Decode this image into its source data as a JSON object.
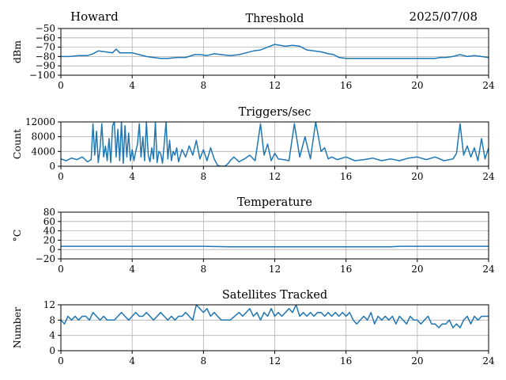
{
  "header": {
    "station": "Howard",
    "date": "2025/07/08"
  },
  "style": {
    "line_color": "#1f77b4",
    "grid_color": "#b0b0b0"
  },
  "chart_data": [
    {
      "type": "line",
      "title": "Threshold",
      "ylabel": "dBm",
      "xlabel": "",
      "xlim": [
        0,
        24
      ],
      "ylim": [
        -100,
        -50
      ],
      "xticks": [
        0,
        4,
        8,
        12,
        16,
        20,
        24
      ],
      "yticks": [
        -50,
        -60,
        -70,
        -80,
        -90,
        -100
      ],
      "ytick_labels": [
        "−50",
        "−60",
        "−70",
        "−80",
        "−90",
        "−100"
      ],
      "grid": true,
      "series": [
        {
          "x": [
            0,
            0.5,
            1,
            1.5,
            1.8,
            2.1,
            2.5,
            2.9,
            3.1,
            3.3,
            3.6,
            4,
            4.4,
            4.8,
            5.2,
            5.6,
            6,
            6.5,
            7,
            7.5,
            7.8,
            8.2,
            8.6,
            9,
            9.5,
            10,
            10.4,
            10.8,
            11.2,
            11.6,
            12,
            12.3,
            12.6,
            13,
            13.4,
            13.8,
            14.2,
            14.6,
            15,
            15.3,
            15.6,
            16,
            17,
            18,
            19,
            20,
            20.5,
            21,
            21.3,
            21.6,
            22,
            22.4,
            22.8,
            23.2,
            23.6,
            24
          ],
          "y": [
            -80,
            -80,
            -79,
            -79,
            -77,
            -74,
            -75,
            -76,
            -72,
            -76,
            -76,
            -76,
            -78,
            -80,
            -81,
            -82,
            -82,
            -81,
            -81,
            -78,
            -78,
            -79,
            -77,
            -78,
            -79,
            -78,
            -76,
            -74,
            -73,
            -70,
            -67,
            -68,
            -69,
            -68,
            -69,
            -73,
            -74,
            -75,
            -77,
            -78,
            -81,
            -82,
            -82,
            -82,
            -82,
            -82,
            -82,
            -82,
            -81,
            -81,
            -80,
            -78,
            -80,
            -79,
            -80,
            -81
          ]
        }
      ]
    },
    {
      "type": "line",
      "title": "Triggers/sec",
      "ylabel": "Count",
      "xlabel": "",
      "xlim": [
        0,
        24
      ],
      "ylim": [
        0,
        12000
      ],
      "xticks": [
        0,
        4,
        8,
        12,
        16,
        20,
        24
      ],
      "yticks": [
        0,
        4000,
        8000,
        12000
      ],
      "ytick_labels": [
        "0",
        "4000",
        "8000",
        "12000"
      ],
      "grid": true,
      "series": [
        {
          "x": [
            0,
            0.3,
            0.6,
            0.9,
            1.2,
            1.5,
            1.7,
            1.8,
            1.9,
            2,
            2.1,
            2.2,
            2.3,
            2.4,
            2.5,
            2.6,
            2.7,
            2.8,
            2.9,
            3.0,
            3.1,
            3.2,
            3.3,
            3.4,
            3.5,
            3.6,
            3.7,
            3.8,
            3.9,
            4.0,
            4.1,
            4.2,
            4.3,
            4.4,
            4.5,
            4.6,
            4.7,
            4.8,
            4.9,
            5.0,
            5.1,
            5.2,
            5.3,
            5.4,
            5.5,
            5.6,
            5.7,
            5.8,
            5.9,
            6.0,
            6.1,
            6.2,
            6.3,
            6.4,
            6.5,
            6.6,
            6.8,
            7.0,
            7.2,
            7.4,
            7.6,
            7.8,
            8.0,
            8.2,
            8.4,
            8.6,
            8.8,
            9.0,
            9.2,
            9.4,
            9.5,
            9.7,
            10.0,
            10.3,
            10.6,
            10.9,
            11.2,
            11.4,
            11.6,
            11.8,
            12.0,
            12.2,
            12.5,
            12.8,
            13.1,
            13.4,
            13.7,
            14.0,
            14.3,
            14.6,
            14.8,
            15.0,
            15.2,
            15.5,
            16.0,
            16.5,
            17.0,
            17.5,
            18.0,
            18.5,
            19.0,
            19.5,
            20.0,
            20.5,
            21.0,
            21.5,
            22.0,
            22.2,
            22.4,
            22.6,
            22.8,
            23.0,
            23.2,
            23.4,
            23.6,
            23.8,
            24.0
          ],
          "y": [
            2000,
            1500,
            2200,
            1800,
            2500,
            1200,
            1800,
            11500,
            3000,
            9500,
            1000,
            5000,
            11500,
            2500,
            5500,
            1500,
            7500,
            1000,
            11000,
            12000,
            2500,
            10000,
            1500,
            12000,
            800,
            11000,
            2500,
            9000,
            1500,
            4500,
            1500,
            4000,
            6000,
            11500,
            2500,
            8000,
            1500,
            12000,
            3000,
            1200,
            5000,
            2000,
            12000,
            1000,
            4000,
            3500,
            800,
            6000,
            12000,
            2000,
            7000,
            1500,
            4000,
            3000,
            5000,
            1200,
            4500,
            2500,
            5500,
            3000,
            7000,
            2000,
            4500,
            1500,
            5000,
            2000,
            200,
            0,
            0,
            800,
            1500,
            2500,
            1200,
            2000,
            3000,
            1500,
            11500,
            3000,
            6000,
            1500,
            3500,
            2000,
            1800,
            1500,
            11500,
            2500,
            8000,
            2000,
            12000,
            4000,
            5000,
            2000,
            2500,
            1800,
            2500,
            1500,
            1800,
            2200,
            1500,
            2000,
            1500,
            2200,
            2500,
            1800,
            2500,
            1500,
            2000,
            3500,
            11500,
            3000,
            5500,
            2500,
            5000,
            1500,
            7500,
            2000,
            5000
          ]
        }
      ]
    },
    {
      "type": "line",
      "title": "Temperature",
      "ylabel": "°C",
      "xlabel": "",
      "xlim": [
        0,
        24
      ],
      "ylim": [
        -20,
        80
      ],
      "xticks": [
        0,
        4,
        8,
        12,
        16,
        20,
        24
      ],
      "yticks": [
        -20,
        0,
        20,
        40,
        60,
        80
      ],
      "ytick_labels": [
        "−20",
        "0",
        "20",
        "40",
        "60",
        "80"
      ],
      "grid": true,
      "series": [
        {
          "x": [
            0,
            4,
            8,
            9.5,
            12,
            16,
            18.5,
            19,
            20,
            24
          ],
          "y": [
            7,
            7,
            7,
            6,
            6,
            6,
            6,
            7,
            7,
            7
          ]
        }
      ]
    },
    {
      "type": "line",
      "title": "Satellites Tracked",
      "ylabel": "Number",
      "xlabel": "",
      "xlim": [
        0,
        24
      ],
      "ylim": [
        0,
        12
      ],
      "xticks": [
        0,
        4,
        8,
        12,
        16,
        20,
        24
      ],
      "yticks": [
        0,
        4,
        8,
        12
      ],
      "ytick_labels": [
        "0",
        "4",
        "8",
        "12"
      ],
      "grid": true,
      "series": [
        {
          "x": [
            0,
            0.2,
            0.4,
            0.6,
            0.8,
            1.0,
            1.2,
            1.4,
            1.6,
            1.8,
            2.0,
            2.2,
            2.4,
            2.6,
            2.8,
            3.0,
            3.2,
            3.4,
            3.6,
            3.8,
            4.0,
            4.2,
            4.4,
            4.6,
            4.8,
            5.0,
            5.2,
            5.4,
            5.6,
            5.8,
            6.0,
            6.2,
            6.4,
            6.6,
            6.8,
            7.0,
            7.2,
            7.4,
            7.6,
            7.8,
            8.0,
            8.2,
            8.4,
            8.6,
            8.8,
            9.0,
            9.5,
            10.0,
            10.2,
            10.4,
            10.6,
            10.8,
            11.0,
            11.2,
            11.4,
            11.6,
            11.8,
            12.0,
            12.2,
            12.4,
            12.6,
            12.8,
            13.0,
            13.2,
            13.4,
            13.6,
            13.8,
            14.0,
            14.2,
            14.4,
            14.6,
            14.8,
            15.0,
            15.2,
            15.4,
            15.6,
            15.8,
            16.0,
            16.2,
            16.4,
            16.6,
            16.8,
            17.0,
            17.2,
            17.4,
            17.6,
            17.8,
            18.0,
            18.2,
            18.4,
            18.6,
            18.8,
            19.0,
            19.2,
            19.4,
            19.6,
            19.8,
            20.0,
            20.2,
            20.4,
            20.6,
            20.8,
            21.0,
            21.2,
            21.4,
            21.6,
            21.8,
            22.0,
            22.2,
            22.4,
            22.6,
            22.8,
            23.0,
            23.2,
            23.4,
            23.6,
            23.8,
            24.0
          ],
          "y": [
            8,
            7,
            9,
            8,
            9,
            8,
            9,
            9,
            8,
            10,
            9,
            8,
            9,
            8,
            8,
            8,
            9,
            10,
            9,
            8,
            9,
            10,
            9,
            9,
            10,
            9,
            8,
            9,
            10,
            9,
            8,
            9,
            8,
            9,
            9,
            10,
            9,
            8,
            12,
            11,
            10,
            11,
            9,
            10,
            9,
            8,
            8,
            10,
            9,
            10,
            11,
            9,
            10,
            8,
            10,
            9,
            11,
            9,
            10,
            9,
            10,
            11,
            10,
            12,
            9,
            10,
            9,
            10,
            9,
            10,
            10,
            9,
            10,
            9,
            10,
            9,
            10,
            9,
            10,
            8,
            7,
            8,
            9,
            8,
            10,
            7,
            9,
            8,
            9,
            8,
            9,
            7,
            9,
            8,
            7,
            9,
            8,
            8,
            7,
            8,
            9,
            7,
            7,
            6,
            7,
            7,
            8,
            6,
            7,
            6,
            8,
            9,
            7,
            9,
            8,
            9,
            9,
            9
          ]
        }
      ]
    }
  ]
}
